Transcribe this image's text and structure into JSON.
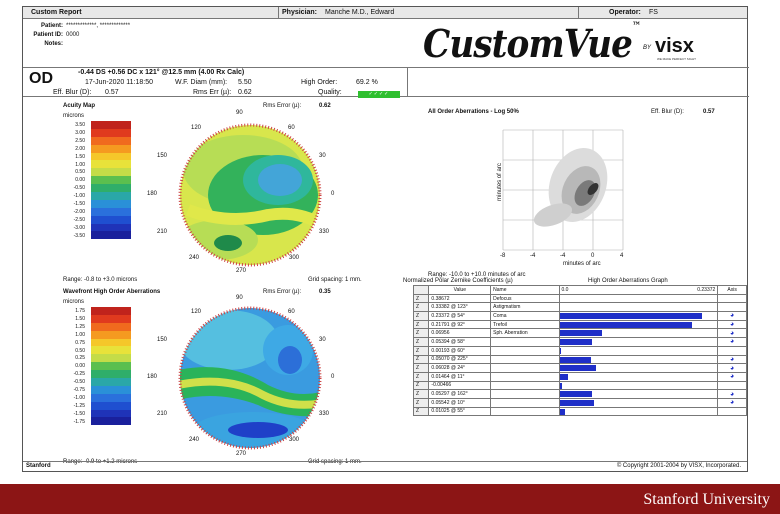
{
  "header": {
    "title": "Custom Report",
    "physician_label": "Physician:",
    "physician": "Manche M.D., Edward",
    "operator_label": "Operator:",
    "operator": "FS"
  },
  "patient": {
    "patient_label": "Patient:",
    "patient_value": "*************, *************",
    "id_label": "Patient ID:",
    "id_value": "0000",
    "notes_label": "Notes:"
  },
  "logo": {
    "brand": "CustomVue",
    "tm": "™",
    "by": "BY",
    "company": "visx",
    "tagline": "WE MAKE PERFECT SIGHT"
  },
  "exam": {
    "eye": "OD",
    "rx": "-0.44 DS +0.56 DC x 121° @12.5 mm (4.00 Rx Calc)",
    "date": "17-Jun-2020 11:18:50",
    "wf_diam_label": "W.F. Diam (mm):",
    "wf_diam": "5.50",
    "high_order_label": "High Order:",
    "high_order": "69.2 %",
    "eff_blur_label": "Eff. Blur (D):",
    "eff_blur": "0.57",
    "rms_label": "Rms Err (µ):",
    "rms": "0.62",
    "quality_label": "Quality:",
    "quality": "✓✓✓✓"
  },
  "acuity": {
    "title": "Acuity Map",
    "rms_label": "Rms Error (µ):",
    "rms": "0.62",
    "unit": "microns",
    "scale": [
      "3.50",
      "3.00",
      "2.50",
      "2.00",
      "1.50",
      "1.00",
      "0.50",
      "0.00",
      "-0.50",
      "-1.00",
      "-1.50",
      "-2.00",
      "-2.50",
      "-3.00",
      "-3.50"
    ],
    "range": "Range: -0.8 to +3.0 microns",
    "grid": "Grid spacing: 1 mm.",
    "angles": [
      "90",
      "120",
      "60",
      "150",
      "30",
      "180",
      "0",
      "210",
      "330",
      "240",
      "300",
      "270"
    ]
  },
  "wavefront": {
    "title": "Wavefront High Order Aberrations",
    "rms_label": "Rms Error (µ):",
    "rms": "0.35",
    "unit": "microns",
    "scale": [
      "1.75",
      "1.50",
      "1.25",
      "1.00",
      "0.75",
      "0.50",
      "0.25",
      "0.00",
      "-0.25",
      "-0.50",
      "-0.75",
      "-1.00",
      "-1.25",
      "-1.50",
      "-1.75"
    ],
    "range": "Range: -0.9 to +1.2 microns",
    "grid": "Grid spacing: 1 mm.",
    "angles": [
      "90",
      "120",
      "60",
      "150",
      "30",
      "180",
      "0",
      "210",
      "330",
      "240",
      "300",
      "270"
    ]
  },
  "psf": {
    "title": "All Order Aberrations - Log 50%",
    "eff_blur_label": "Eff. Blur (D):",
    "eff_blur": "0.57",
    "xlabel": "minutes of arc",
    "ylabel": "minutes of arc",
    "xticks": [
      "-8",
      "-4",
      "-4",
      "0",
      "4",
      "8"
    ],
    "range": "Range: -10.0 to +10.0 minutes of arc"
  },
  "zernike": {
    "title": "Normalized Polar Zernike Coefficients (µ)",
    "graph_title": "High Order Aberrations Graph",
    "col_value": "Value",
    "col_name": "Name",
    "graph_min": "0.0",
    "graph_max": "0.23372",
    "col_axis": "Axis",
    "rows": [
      {
        "z": "Z",
        "value": "0.38672",
        "name": "Defocus",
        "bar": 0
      },
      {
        "z": "Z",
        "value": "0.33382 @ 123°",
        "name": "Astigmatism",
        "bar": 0
      },
      {
        "z": "Z",
        "value": "0.23372 @ 54°",
        "name": "Coma",
        "bar": 1.0
      },
      {
        "z": "Z",
        "value": "0.21791 @ 92°",
        "name": "Trefoil",
        "bar": 0.93
      },
      {
        "z": "Z",
        "value": "0.06956",
        "name": "Sph. Aberration",
        "bar": 0.3
      },
      {
        "z": "Z",
        "value": "0.05394 @ 58°",
        "name": "",
        "bar": 0.23
      },
      {
        "z": "Z",
        "value": "0.00193 @ 60°",
        "name": "",
        "bar": 0.01
      },
      {
        "z": "Z",
        "value": "0.05070 @ 225°",
        "name": "",
        "bar": 0.22
      },
      {
        "z": "Z",
        "value": "0.06028 @ 24°",
        "name": "",
        "bar": 0.26
      },
      {
        "z": "Z",
        "value": "0.01464 @ 11°",
        "name": "",
        "bar": 0.06
      },
      {
        "z": "Z",
        "value": "-0.00466",
        "name": "",
        "bar": 0.02
      },
      {
        "z": "Z",
        "value": "0.05297 @ 162°",
        "name": "",
        "bar": 0.23
      },
      {
        "z": "Z",
        "value": "0.05542 @ 10°",
        "name": "",
        "bar": 0.24
      },
      {
        "z": "Z",
        "value": "0.01025 @ 55°",
        "name": "",
        "bar": 0.04
      }
    ]
  },
  "footer": {
    "left": "Stanford",
    "right": "© Copyright 2001-2004 by VISX, Incorporated."
  },
  "banner": {
    "text": "Stanford University",
    "color": "#8c1515"
  }
}
